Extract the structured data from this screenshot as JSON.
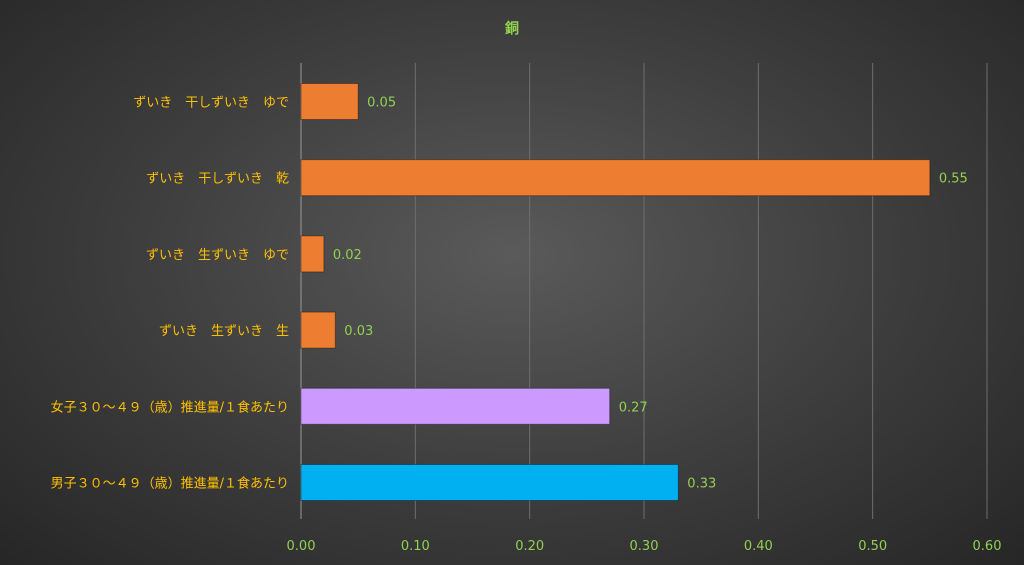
{
  "chart_data": {
    "type": "bar",
    "orientation": "horizontal",
    "title": "銅",
    "categories": [
      "ずいき　干しずいき　ゆで",
      "ずいき　干しずいき　乾",
      "ずいき　生ずいき　ゆで",
      "ずいき　生ずいき　生",
      "女子３０～４９（歳）推進量/１食あたり",
      "男子３０～４９（歳）推進量/１食あたり"
    ],
    "values": [
      0.05,
      0.55,
      0.02,
      0.03,
      0.27,
      0.33
    ],
    "value_labels": [
      "0.05",
      "0.55",
      "0.02",
      "0.03",
      "0.27",
      "0.33"
    ],
    "bar_colors": [
      "#ed7d31",
      "#ed7d31",
      "#ed7d31",
      "#ed7d31",
      "#cc99ff",
      "#00b0f0"
    ],
    "xlim": [
      0,
      0.6
    ],
    "xticks": [
      0,
      0.1,
      0.2,
      0.3,
      0.4,
      0.5,
      0.6
    ],
    "xtick_labels": [
      "0.00",
      "0.10",
      "0.20",
      "0.30",
      "0.40",
      "0.50",
      "0.60"
    ],
    "xlabel": "",
    "ylabel": "",
    "grid": true,
    "legend": "none"
  }
}
